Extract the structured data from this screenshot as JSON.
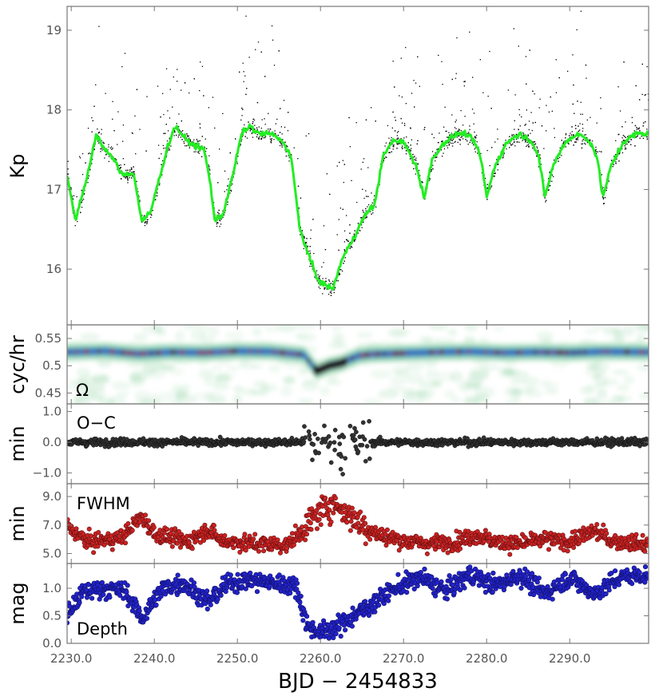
{
  "figure": {
    "xlabel": "BJD − 2454833",
    "x_tick_labels": [
      "2230.0",
      "2240.0",
      "2250.0",
      "2260.0",
      "2270.0",
      "2280.0",
      "2290.0"
    ],
    "colors": {
      "lightcurve": "#000000",
      "model": "#22ee22",
      "oc": "#333333",
      "fwhm": "#cc2222",
      "depth": "#2222cc"
    }
  },
  "chart_data": [
    {
      "type": "scatter",
      "id": "kp",
      "ylabel": "Kp",
      "xlim": [
        2229.5,
        2299.5
      ],
      "ylim": [
        19.3,
        15.3
      ],
      "y_ticks": [
        16,
        17,
        18,
        19
      ],
      "y_tick_labels": [
        "16",
        "17",
        "18",
        "19"
      ],
      "series": [
        {
          "name": "model",
          "x": [
            2229.5,
            2230.5,
            2232.0,
            2233.0,
            2234.0,
            2235.0,
            2236.0,
            2237.5,
            2238.5,
            2239.5,
            2241.5,
            2242.5,
            2244.0,
            2246.0,
            2246.7,
            2247.3,
            2248.3,
            2249.5,
            2250.5,
            2251.5,
            2252.5,
            2254.0,
            2255.5,
            2256.5,
            2257.5,
            2258.5,
            2259.5,
            2260.5,
            2261.5,
            2262.5,
            2264.0,
            2265.5,
            2266.5,
            2267.5,
            2268.5,
            2270.0,
            2271.5,
            2272.5,
            2273.5,
            2275.0,
            2276.5,
            2277.5,
            2278.5,
            2279.3,
            2280.0,
            2281.0,
            2282.5,
            2284.0,
            2285.5,
            2286.3,
            2287.0,
            2288.0,
            2289.5,
            2291.0,
            2292.5,
            2293.3,
            2294.0,
            2295.0,
            2296.5,
            2298.0,
            2299.5
          ],
          "y": [
            17.2,
            16.6,
            17.2,
            17.7,
            17.5,
            17.4,
            17.2,
            17.2,
            16.6,
            16.7,
            17.5,
            17.8,
            17.6,
            17.5,
            17.1,
            16.6,
            16.7,
            17.2,
            17.7,
            17.8,
            17.7,
            17.7,
            17.6,
            17.4,
            16.5,
            16.2,
            15.9,
            15.8,
            15.75,
            16.1,
            16.4,
            16.7,
            16.8,
            17.4,
            17.6,
            17.6,
            17.3,
            16.9,
            17.4,
            17.6,
            17.7,
            17.7,
            17.6,
            17.4,
            16.9,
            17.3,
            17.6,
            17.7,
            17.6,
            17.4,
            16.9,
            17.3,
            17.6,
            17.7,
            17.6,
            17.4,
            16.9,
            17.3,
            17.6,
            17.7,
            17.7
          ]
        }
      ]
    },
    {
      "type": "heatmap",
      "id": "omega",
      "ylabel": "cyc/hr",
      "annotation": "Ω",
      "xlim": [
        2229.5,
        2299.5
      ],
      "ylim": [
        0.43,
        0.575
      ],
      "y_ticks": [
        0.45,
        0.5,
        0.55
      ],
      "y_tick_labels": [
        "0.45",
        "0.5",
        "0.55"
      ],
      "ridge": {
        "x": [
          2229.5,
          2234.0,
          2238.0,
          2242.0,
          2246.0,
          2250.0,
          2254.0,
          2258.0,
          2259.5,
          2261.0,
          2262.5,
          2263.5,
          2264.5,
          2266.0,
          2270.0,
          2274.0,
          2278.0,
          2282.0,
          2286.0,
          2290.0,
          2294.0,
          2299.5
        ],
        "y": [
          0.525,
          0.527,
          0.522,
          0.525,
          0.524,
          0.527,
          0.526,
          0.52,
          0.49,
          0.5,
          0.505,
          0.512,
          0.518,
          0.521,
          0.523,
          0.525,
          0.526,
          0.524,
          0.525,
          0.524,
          0.526,
          0.525
        ]
      }
    },
    {
      "type": "scatter",
      "id": "oc",
      "ylabel": "min",
      "annotation": "O−C",
      "xlim": [
        2229.5,
        2299.5
      ],
      "ylim": [
        -1.35,
        1.25
      ],
      "y_ticks": [
        1.0,
        0.0,
        -1.0
      ],
      "y_tick_labels": [
        "1.0",
        "0.0",
        "−1.0"
      ],
      "model": {
        "baseline": 0.0,
        "scatter": 0.08,
        "active_range": [
          2258.0,
          2266.0
        ],
        "active_scatter": 0.55
      }
    },
    {
      "type": "scatter",
      "id": "fwhm",
      "ylabel": "min",
      "annotation": "FWHM",
      "xlim": [
        2229.5,
        2299.5
      ],
      "ylim": [
        4.3,
        9.9
      ],
      "y_ticks": [
        9.0,
        7.0,
        5.0
      ],
      "y_tick_labels": [
        "9.0",
        "7.0",
        "5.0"
      ],
      "trend": {
        "x": [
          2229.5,
          2232.0,
          2236.0,
          2238.5,
          2240.0,
          2244.0,
          2246.5,
          2248.0,
          2252.0,
          2256.0,
          2258.0,
          2260.0,
          2261.5,
          2263.0,
          2265.0,
          2267.0,
          2270.0,
          2273.0,
          2276.0,
          2279.0,
          2281.0,
          2284.0,
          2287.0,
          2290.0,
          2293.0,
          2295.0,
          2299.5
        ],
        "y": [
          6.9,
          5.8,
          6.1,
          7.6,
          6.4,
          5.8,
          6.7,
          5.9,
          5.7,
          5.6,
          6.7,
          8.0,
          8.5,
          7.9,
          7.0,
          6.3,
          5.9,
          5.7,
          5.8,
          6.3,
          5.8,
          5.7,
          6.0,
          5.8,
          6.6,
          5.9,
          5.6
        ]
      }
    },
    {
      "type": "scatter",
      "id": "depth",
      "ylabel": "mag",
      "annotation": "Depth",
      "xlim": [
        2229.5,
        2299.5
      ],
      "ylim": [
        0.0,
        1.45
      ],
      "y_ticks": [
        1.0,
        0.5,
        0.0
      ],
      "y_tick_labels": [
        "1.0",
        "0.5",
        "0.0"
      ],
      "trend": {
        "x": [
          2229.5,
          2231.5,
          2234.0,
          2236.5,
          2238.5,
          2241.0,
          2243.5,
          2246.5,
          2249.0,
          2251.5,
          2254.0,
          2257.0,
          2258.5,
          2260.0,
          2262.0,
          2264.0,
          2266.0,
          2269.0,
          2272.0,
          2275.0,
          2278.0,
          2281.0,
          2284.0,
          2287.0,
          2290.0,
          2293.0,
          2296.0,
          2299.5
        ],
        "y": [
          0.5,
          0.95,
          1.0,
          0.95,
          0.45,
          1.0,
          1.1,
          0.75,
          1.1,
          1.15,
          1.1,
          1.05,
          0.3,
          0.2,
          0.3,
          0.5,
          0.7,
          1.0,
          1.2,
          0.95,
          1.25,
          1.05,
          1.25,
          0.9,
          1.2,
          0.9,
          1.2,
          1.25
        ]
      }
    }
  ]
}
